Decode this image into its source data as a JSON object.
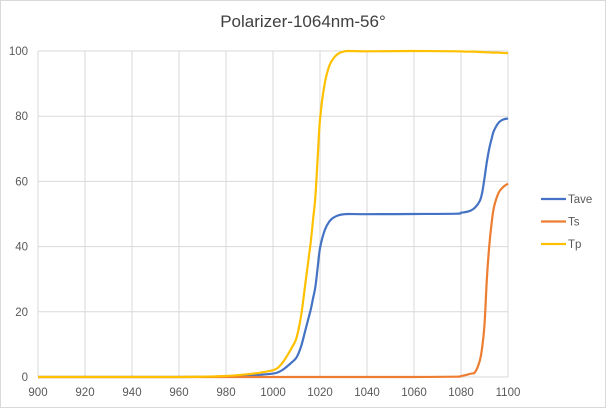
{
  "chart_data": {
    "type": "line",
    "title": "Polarizer-1064nm-56°",
    "xlabel": "",
    "ylabel": "",
    "xlim": [
      900,
      1100
    ],
    "ylim": [
      0,
      100
    ],
    "xticks": [
      "900",
      "920",
      "940",
      "960",
      "980",
      "1000",
      "1020",
      "1040",
      "1060",
      "1080",
      "1100"
    ],
    "yticks": [
      "0",
      "20",
      "40",
      "60",
      "80",
      "100"
    ],
    "grid": true,
    "legend_position": "right",
    "x": [
      900,
      920,
      940,
      960,
      970,
      980,
      990,
      995,
      1000,
      1002,
      1004,
      1006,
      1008,
      1010,
      1012,
      1014,
      1016,
      1017,
      1018,
      1019,
      1020,
      1022,
      1024,
      1026,
      1028,
      1030,
      1032,
      1040,
      1060,
      1078,
      1080,
      1082,
      1084,
      1086,
      1088,
      1089,
      1090,
      1091,
      1092,
      1093,
      1094,
      1096,
      1098,
      1100
    ],
    "series": [
      {
        "name": "Tave",
        "color": "#4472C4",
        "values": [
          0,
          0,
          0,
          0,
          0.05,
          0.15,
          0.45,
          0.7,
          1.05,
          1.4,
          2.15,
          3.25,
          4.5,
          6,
          9.5,
          15,
          20.5,
          24,
          27.5,
          33.5,
          39.5,
          45,
          47.75,
          49,
          49.65,
          49.9,
          50,
          49.95,
          50,
          50.1,
          50.4,
          50.6,
          51,
          52,
          54,
          56.5,
          61,
          66,
          70,
          73,
          75.5,
          78,
          79,
          79.3
        ]
      },
      {
        "name": "Ts",
        "color": "#ED7D31",
        "values": [
          0,
          0,
          0,
          0,
          0,
          0,
          0,
          0,
          0,
          0,
          0,
          0,
          0,
          0,
          0,
          0,
          0,
          0,
          0,
          0,
          0,
          0,
          0,
          0,
          0,
          0,
          0,
          0,
          0,
          0.1,
          0.3,
          0.6,
          1,
          1.5,
          5,
          9,
          16,
          30,
          40,
          47,
          52,
          56.5,
          58.3,
          59.3
        ]
      },
      {
        "name": "Tp",
        "color": "#FFC000",
        "values": [
          0,
          0,
          0,
          0,
          0.1,
          0.3,
          0.9,
          1.4,
          2.1,
          2.8,
          4.3,
          6.5,
          9,
          12,
          19,
          30,
          41,
          48,
          55,
          67,
          79,
          90,
          95.5,
          98,
          99.3,
          99.8,
          100,
          99.9,
          100,
          99.9,
          99.9,
          99.8,
          99.8,
          99.8,
          99.7,
          99.7,
          99.6,
          99.6,
          99.6,
          99.5,
          99.5,
          99.5,
          99.4,
          99.3
        ]
      }
    ]
  }
}
